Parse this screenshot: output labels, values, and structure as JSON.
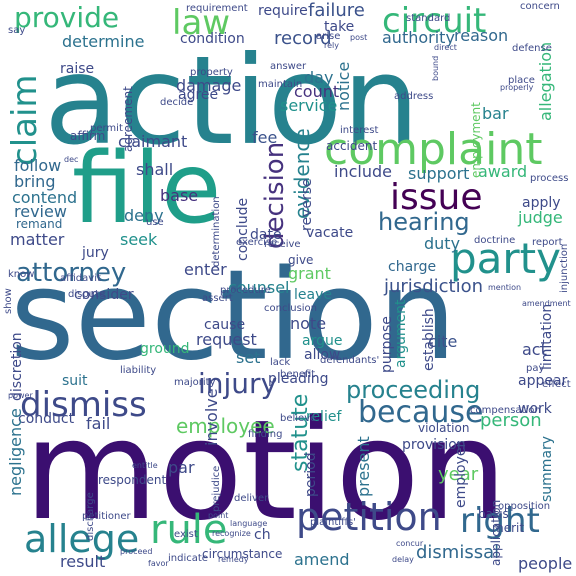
{
  "words": [
    {
      "text": "motion",
      "color": "#3b0f70"
    },
    {
      "text": "section",
      "color": "#31688e"
    },
    {
      "text": "action",
      "color": "#26828e"
    },
    {
      "text": "file",
      "color": "#1f9e89"
    },
    {
      "text": "complaint",
      "color": "#5ec962"
    },
    {
      "text": "petition",
      "color": "#3e4a89"
    },
    {
      "text": "because",
      "color": "#31688e"
    },
    {
      "text": "party",
      "color": "#21918c"
    },
    {
      "text": "issue",
      "color": "#440154"
    },
    {
      "text": "dismiss",
      "color": "#3e4a89"
    },
    {
      "text": "circuit",
      "color": "#35b779"
    },
    {
      "text": "claim",
      "color": "#21918c"
    },
    {
      "text": "attorney",
      "color": "#31688e"
    },
    {
      "text": "allege",
      "color": "#26828e"
    },
    {
      "text": "rule",
      "color": "#35b779"
    },
    {
      "text": "right",
      "color": "#31688e"
    },
    {
      "text": "provide",
      "color": "#35b779"
    },
    {
      "text": "law",
      "color": "#5ec962"
    },
    {
      "text": "hearing",
      "color": "#31688e"
    },
    {
      "text": "injury",
      "color": "#3e4a89"
    },
    {
      "text": "decision",
      "color": "#46327e"
    },
    {
      "text": "proceeding",
      "color": "#26828e"
    },
    {
      "text": "evidence",
      "color": "#26828e"
    },
    {
      "text": "statute",
      "color": "#21918c"
    },
    {
      "text": "dismissal",
      "color": "#31688e"
    },
    {
      "text": "jurisdiction",
      "color": "#3b528b"
    },
    {
      "text": "employee",
      "color": "#5ec962"
    },
    {
      "text": "person",
      "color": "#35b779"
    },
    {
      "text": "record",
      "color": "#3b528b"
    },
    {
      "text": "failure",
      "color": "#3b528b"
    },
    {
      "text": "authority",
      "color": "#31688e"
    },
    {
      "text": "reason",
      "color": "#31688e"
    },
    {
      "text": "determine",
      "color": "#2c728e"
    },
    {
      "text": "damage",
      "color": "#3e4a89"
    },
    {
      "text": "count",
      "color": "#46327e"
    },
    {
      "text": "service",
      "color": "#21918c"
    },
    {
      "text": "day",
      "color": "#2c728e"
    },
    {
      "text": "notice",
      "color": "#2c728e"
    },
    {
      "text": "claimant",
      "color": "#3e4a89"
    },
    {
      "text": "fee",
      "color": "#3b528b"
    },
    {
      "text": "shall",
      "color": "#3e4a89"
    },
    {
      "text": "include",
      "color": "#3e4a89"
    },
    {
      "text": "support",
      "color": "#2c728e"
    },
    {
      "text": "award",
      "color": "#35b779"
    },
    {
      "text": "bar",
      "color": "#26828e"
    },
    {
      "text": "allegation",
      "color": "#35b779"
    },
    {
      "text": "follow",
      "color": "#31688e"
    },
    {
      "text": "bring",
      "color": "#31688e"
    },
    {
      "text": "contend",
      "color": "#2c728e"
    },
    {
      "text": "review",
      "color": "#31688e"
    },
    {
      "text": "remand",
      "color": "#31688e"
    },
    {
      "text": "matter",
      "color": "#3e4a89"
    },
    {
      "text": "base",
      "color": "#46327e"
    },
    {
      "text": "deny",
      "color": "#2c728e"
    },
    {
      "text": "seek",
      "color": "#21918c"
    },
    {
      "text": "jury",
      "color": "#3e4a89"
    },
    {
      "text": "conclude",
      "color": "#3e4a89"
    },
    {
      "text": "date",
      "color": "#3e4a89"
    },
    {
      "text": "vacate",
      "color": "#3e4a89"
    },
    {
      "text": "apply",
      "color": "#3e4a89"
    },
    {
      "text": "judge",
      "color": "#35b779"
    },
    {
      "text": "duty",
      "color": "#2c728e"
    },
    {
      "text": "charge",
      "color": "#31688e"
    },
    {
      "text": "enter",
      "color": "#3e4a89"
    },
    {
      "text": "grant",
      "color": "#5ec962"
    },
    {
      "text": "counsel",
      "color": "#26828e"
    },
    {
      "text": "leave",
      "color": "#26828e"
    },
    {
      "text": "note",
      "color": "#3e4a89"
    },
    {
      "text": "argue",
      "color": "#21918c"
    },
    {
      "text": "consider",
      "color": "#3e4a89"
    },
    {
      "text": "cause",
      "color": "#3e4a89"
    },
    {
      "text": "request",
      "color": "#3e4a89"
    },
    {
      "text": "set",
      "color": "#2c728e"
    },
    {
      "text": "ground",
      "color": "#35b779"
    },
    {
      "text": "suit",
      "color": "#2c728e"
    },
    {
      "text": "argument",
      "color": "#21918c"
    },
    {
      "text": "cite",
      "color": "#3b528b"
    },
    {
      "text": "act",
      "color": "#3e4a89"
    },
    {
      "text": "appear",
      "color": "#3e4a89"
    },
    {
      "text": "allow",
      "color": "#3e4a89"
    },
    {
      "text": "work",
      "color": "#3e4a89"
    },
    {
      "text": "conduct",
      "color": "#3e4a89"
    },
    {
      "text": "fail",
      "color": "#3e4a89"
    },
    {
      "text": "relief",
      "color": "#21918c"
    },
    {
      "text": "involve",
      "color": "#3e4a89"
    },
    {
      "text": "year",
      "color": "#5ec962"
    },
    {
      "text": "employer",
      "color": "#3e4a89"
    },
    {
      "text": "present",
      "color": "#2c728e"
    },
    {
      "text": "provision",
      "color": "#3e4a89"
    },
    {
      "text": "summary",
      "color": "#2c728e"
    },
    {
      "text": "par",
      "color": "#3e4a89"
    },
    {
      "text": "negligence",
      "color": "#2c728e"
    },
    {
      "text": "discretion",
      "color": "#3e4a89"
    },
    {
      "text": "result",
      "color": "#3e4a89"
    },
    {
      "text": "amend",
      "color": "#2c728e"
    },
    {
      "text": "people",
      "color": "#3e4a89"
    },
    {
      "text": "ch",
      "color": "#3e4a89"
    },
    {
      "text": "period",
      "color": "#3e4a89"
    },
    {
      "text": "purpose",
      "color": "#3e4a89"
    },
    {
      "text": "establish",
      "color": "#3e4a89"
    },
    {
      "text": "limitation",
      "color": "#3e4a89"
    },
    {
      "text": "raise",
      "color": "#3e4a89"
    },
    {
      "text": "agreement",
      "color": "#3e4a89"
    },
    {
      "text": "affirm",
      "color": "#3e4a89"
    },
    {
      "text": "accident",
      "color": "#3e4a89"
    },
    {
      "text": "reverse",
      "color": "#3e4a89"
    },
    {
      "text": "employment",
      "color": "#5ec962"
    },
    {
      "text": "pleading",
      "color": "#3e4a89"
    },
    {
      "text": "require",
      "color": "#3e4a89"
    },
    {
      "text": "take",
      "color": "#3e4a89"
    },
    {
      "text": "condition",
      "color": "#3e4a89"
    },
    {
      "text": "agree",
      "color": "#3e4a89"
    },
    {
      "text": "maintain",
      "color": "#3e4a89"
    },
    {
      "text": "address",
      "color": "#3e4a89"
    },
    {
      "text": "give",
      "color": "#3e4a89"
    },
    {
      "text": "defendants'",
      "color": "#3e4a89"
    },
    {
      "text": "finding",
      "color": "#3e4a89"
    },
    {
      "text": "respondent",
      "color": "#3e4a89"
    },
    {
      "text": "petitioner",
      "color": "#3e4a89"
    },
    {
      "text": "discharge",
      "color": "#3e4a89"
    },
    {
      "text": "circumstance",
      "color": "#3e4a89"
    },
    {
      "text": "indicate",
      "color": "#3e4a89"
    },
    {
      "text": "exist",
      "color": "#3e4a89"
    },
    {
      "text": "plaintiffs'",
      "color": "#3e4a89"
    },
    {
      "text": "merit",
      "color": "#3e4a89"
    },
    {
      "text": "basis",
      "color": "#3e4a89"
    },
    {
      "text": "violation",
      "color": "#3e4a89"
    },
    {
      "text": "application",
      "color": "#3e4a89"
    },
    {
      "text": "compensation",
      "color": "#3e4a89"
    },
    {
      "text": "effect",
      "color": "#3e4a89"
    },
    {
      "text": "pay",
      "color": "#3e4a89"
    },
    {
      "text": "liability",
      "color": "#3e4a89"
    },
    {
      "text": "majority",
      "color": "#3e4a89"
    },
    {
      "text": "believe",
      "color": "#3e4a89"
    },
    {
      "text": "exercise",
      "color": "#3e4a89"
    },
    {
      "text": "receive",
      "color": "#3e4a89"
    },
    {
      "text": "doctrine",
      "color": "#3e4a89"
    },
    {
      "text": "report",
      "color": "#3e4a89"
    },
    {
      "text": "injunction",
      "color": "#3e4a89"
    },
    {
      "text": "amendment",
      "color": "#3e4a89"
    },
    {
      "text": "procedure",
      "color": "#3e4a89"
    },
    {
      "text": "dispute",
      "color": "#3e4a89"
    },
    {
      "text": "affidavit",
      "color": "#3e4a89"
    },
    {
      "text": "know",
      "color": "#3e4a89"
    },
    {
      "text": "show",
      "color": "#3e4a89"
    },
    {
      "text": "assert",
      "color": "#3e4a89"
    },
    {
      "text": "conclusion",
      "color": "#3e4a89"
    },
    {
      "text": "lack",
      "color": "#3e4a89"
    },
    {
      "text": "benefit",
      "color": "#3e4a89"
    },
    {
      "text": "decide",
      "color": "#3e4a89"
    },
    {
      "text": "property",
      "color": "#3e4a89"
    },
    {
      "text": "answer",
      "color": "#3e4a89"
    },
    {
      "text": "interest",
      "color": "#3e4a89"
    },
    {
      "text": "permit",
      "color": "#3e4a89"
    },
    {
      "text": "say",
      "color": "#3e4a89"
    },
    {
      "text": "requirement",
      "color": "#3e4a89"
    },
    {
      "text": "standard",
      "color": "#3e4a89"
    },
    {
      "text": "concern",
      "color": "#3e4a89"
    },
    {
      "text": "defense",
      "color": "#3e4a89"
    },
    {
      "text": "place",
      "color": "#3e4a89"
    },
    {
      "text": "process",
      "color": "#3e4a89"
    },
    {
      "text": "arise",
      "color": "#3e4a89"
    },
    {
      "text": "rely",
      "color": "#3e4a89"
    },
    {
      "text": "post",
      "color": "#3e4a89"
    },
    {
      "text": "proceed",
      "color": "#3e4a89"
    },
    {
      "text": "power",
      "color": "#3e4a89"
    },
    {
      "text": "remedy",
      "color": "#3e4a89"
    },
    {
      "text": "delay",
      "color": "#3e4a89"
    },
    {
      "text": "concur",
      "color": "#3e4a89"
    },
    {
      "text": "favor",
      "color": "#3e4a89"
    },
    {
      "text": "language",
      "color": "#3e4a89"
    },
    {
      "text": "point",
      "color": "#3e4a89"
    },
    {
      "text": "deliver",
      "color": "#3e4a89"
    },
    {
      "text": "prejudice",
      "color": "#3e4a89"
    },
    {
      "text": "determination",
      "color": "#3e4a89"
    },
    {
      "text": "use",
      "color": "#3e4a89"
    },
    {
      "text": "mention",
      "color": "#3e4a89"
    },
    {
      "text": "opposition",
      "color": "#3e4a89"
    },
    {
      "text": "entitle",
      "color": "#3e4a89"
    },
    {
      "text": "recognize",
      "color": "#3e4a89"
    },
    {
      "text": "dec",
      "color": "#3e4a89"
    },
    {
      "text": "properly",
      "color": "#3e4a89"
    },
    {
      "text": "bound",
      "color": "#3e4a89"
    },
    {
      "text": "direct",
      "color": "#3e4a89"
    }
  ]
}
